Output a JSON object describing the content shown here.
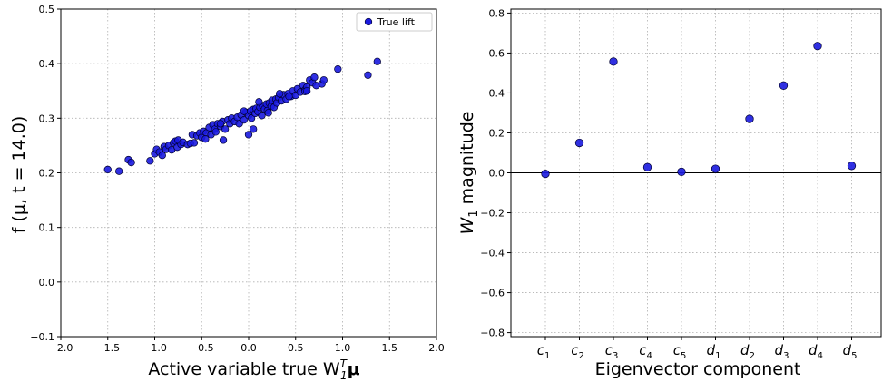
{
  "chart_data": [
    {
      "type": "scatter",
      "title": "",
      "xlabel_main": "Active variable true W",
      "xlabel_sub": "1",
      "xlabel_sup": "T",
      "xlabel_tail": "μ",
      "ylabel": "f (μ, t = 14.0)",
      "xlim": [
        -2.0,
        2.0
      ],
      "ylim": [
        -0.1,
        0.5
      ],
      "xticks": [
        "−2.0",
        "−1.5",
        "−1.0",
        "−0.5",
        "0.0",
        "0.5",
        "1.0",
        "1.5",
        "2.0"
      ],
      "xtick_values": [
        -2.0,
        -1.5,
        -1.0,
        -0.5,
        0.0,
        0.5,
        1.0,
        1.5,
        2.0
      ],
      "yticks": [
        "−0.1",
        "0.0",
        "0.1",
        "0.2",
        "0.3",
        "0.4",
        "0.5"
      ],
      "ytick_values": [
        -0.1,
        0.0,
        0.1,
        0.2,
        0.3,
        0.4,
        0.5
      ],
      "grid": true,
      "legend_position": "top-right",
      "series": [
        {
          "name": "True lift",
          "color": "#1a1adf",
          "points": [
            [
              -1.5,
              0.206
            ],
            [
              -1.38,
              0.203
            ],
            [
              -1.28,
              0.224
            ],
            [
              -1.25,
              0.219
            ],
            [
              -1.05,
              0.222
            ],
            [
              -1.0,
              0.235
            ],
            [
              -0.98,
              0.243
            ],
            [
              -0.95,
              0.238
            ],
            [
              -0.92,
              0.232
            ],
            [
              -0.9,
              0.248
            ],
            [
              -0.88,
              0.243
            ],
            [
              -0.85,
              0.25
            ],
            [
              -0.82,
              0.242
            ],
            [
              -0.8,
              0.255
            ],
            [
              -0.78,
              0.258
            ],
            [
              -0.76,
              0.247
            ],
            [
              -0.75,
              0.26
            ],
            [
              -0.72,
              0.252
            ],
            [
              -0.7,
              0.256
            ],
            [
              -0.65,
              0.252
            ],
            [
              -0.62,
              0.254
            ],
            [
              -0.6,
              0.27
            ],
            [
              -0.58,
              0.255
            ],
            [
              -0.55,
              0.268
            ],
            [
              -0.52,
              0.273
            ],
            [
              -0.5,
              0.265
            ],
            [
              -0.48,
              0.276
            ],
            [
              -0.45,
              0.273
            ],
            [
              -0.42,
              0.283
            ],
            [
              -0.4,
              0.27
            ],
            [
              -0.38,
              0.288
            ],
            [
              -0.36,
              0.28
            ],
            [
              -0.35,
              0.275
            ],
            [
              -0.33,
              0.29
            ],
            [
              -0.3,
              0.285
            ],
            [
              -0.28,
              0.294
            ],
            [
              -0.25,
              0.28
            ],
            [
              -0.22,
              0.297
            ],
            [
              -0.2,
              0.29
            ],
            [
              -0.18,
              0.3
            ],
            [
              -0.15,
              0.294
            ],
            [
              -0.12,
              0.302
            ],
            [
              -0.1,
              0.29
            ],
            [
              -0.08,
              0.306
            ],
            [
              -0.05,
              0.297
            ],
            [
              -0.03,
              0.311
            ],
            [
              0.0,
              0.305
            ],
            [
              0.02,
              0.313
            ],
            [
              0.03,
              0.3
            ],
            [
              0.05,
              0.316
            ],
            [
              0.07,
              0.309
            ],
            [
              0.08,
              0.318
            ],
            [
              0.1,
              0.312
            ],
            [
              0.12,
              0.32
            ],
            [
              0.14,
              0.305
            ],
            [
              0.15,
              0.323
            ],
            [
              0.17,
              0.317
            ],
            [
              0.19,
              0.326
            ],
            [
              0.2,
              0.314
            ],
            [
              0.22,
              0.328
            ],
            [
              0.24,
              0.322
            ],
            [
              0.25,
              0.333
            ],
            [
              0.27,
              0.32
            ],
            [
              0.29,
              0.335
            ],
            [
              0.3,
              0.328
            ],
            [
              0.32,
              0.338
            ],
            [
              0.35,
              0.332
            ],
            [
              0.37,
              0.343
            ],
            [
              0.4,
              0.335
            ],
            [
              0.42,
              0.345
            ],
            [
              0.45,
              0.34
            ],
            [
              0.47,
              0.35
            ],
            [
              0.5,
              0.342
            ],
            [
              0.52,
              0.354
            ],
            [
              0.55,
              0.348
            ],
            [
              0.58,
              0.36
            ],
            [
              0.6,
              0.352
            ],
            [
              0.62,
              0.357
            ],
            [
              0.65,
              0.37
            ],
            [
              0.68,
              0.365
            ],
            [
              0.7,
              0.375
            ],
            [
              0.72,
              0.36
            ],
            [
              0.78,
              0.363
            ],
            [
              0.8,
              0.37
            ],
            [
              0.95,
              0.39
            ],
            [
              1.27,
              0.379
            ],
            [
              1.37,
              0.404
            ],
            [
              -0.05,
              0.313
            ],
            [
              0.11,
              0.33
            ],
            [
              0.21,
              0.31
            ],
            [
              0.33,
              0.345
            ],
            [
              0.6,
              0.349
            ],
            [
              -0.27,
              0.26
            ],
            [
              -0.3,
              0.29
            ],
            [
              0.62,
              0.35
            ],
            [
              0.0,
              0.27
            ],
            [
              0.05,
              0.28
            ],
            [
              0.43,
              0.34
            ],
            [
              -0.46,
              0.262
            ]
          ]
        }
      ]
    },
    {
      "type": "scatter",
      "title": "",
      "xlabel": "Eigenvector component",
      "ylabel_main": "W",
      "ylabel_sub": "1",
      "ylabel_tail": " magnitude",
      "ylim": [
        -0.82,
        0.82
      ],
      "yticks": [
        "−0.8",
        "−0.6",
        "−0.4",
        "−0.2",
        "0.0",
        "0.2",
        "0.4",
        "0.6",
        "0.8"
      ],
      "ytick_values": [
        -0.8,
        -0.6,
        -0.4,
        -0.2,
        0.0,
        0.2,
        0.4,
        0.6,
        0.8
      ],
      "categories": [
        {
          "base": "c",
          "sub": "1"
        },
        {
          "base": "c",
          "sub": "2"
        },
        {
          "base": "c",
          "sub": "3"
        },
        {
          "base": "c",
          "sub": "4"
        },
        {
          "base": "c",
          "sub": "5"
        },
        {
          "base": "d",
          "sub": "1"
        },
        {
          "base": "d",
          "sub": "2"
        },
        {
          "base": "d",
          "sub": "3"
        },
        {
          "base": "d",
          "sub": "4"
        },
        {
          "base": "d",
          "sub": "5"
        }
      ],
      "values": [
        -0.005,
        0.15,
        0.557,
        0.028,
        0.005,
        0.02,
        0.27,
        0.437,
        0.635,
        0.035
      ],
      "grid": true,
      "color": "#1a1adf"
    }
  ]
}
